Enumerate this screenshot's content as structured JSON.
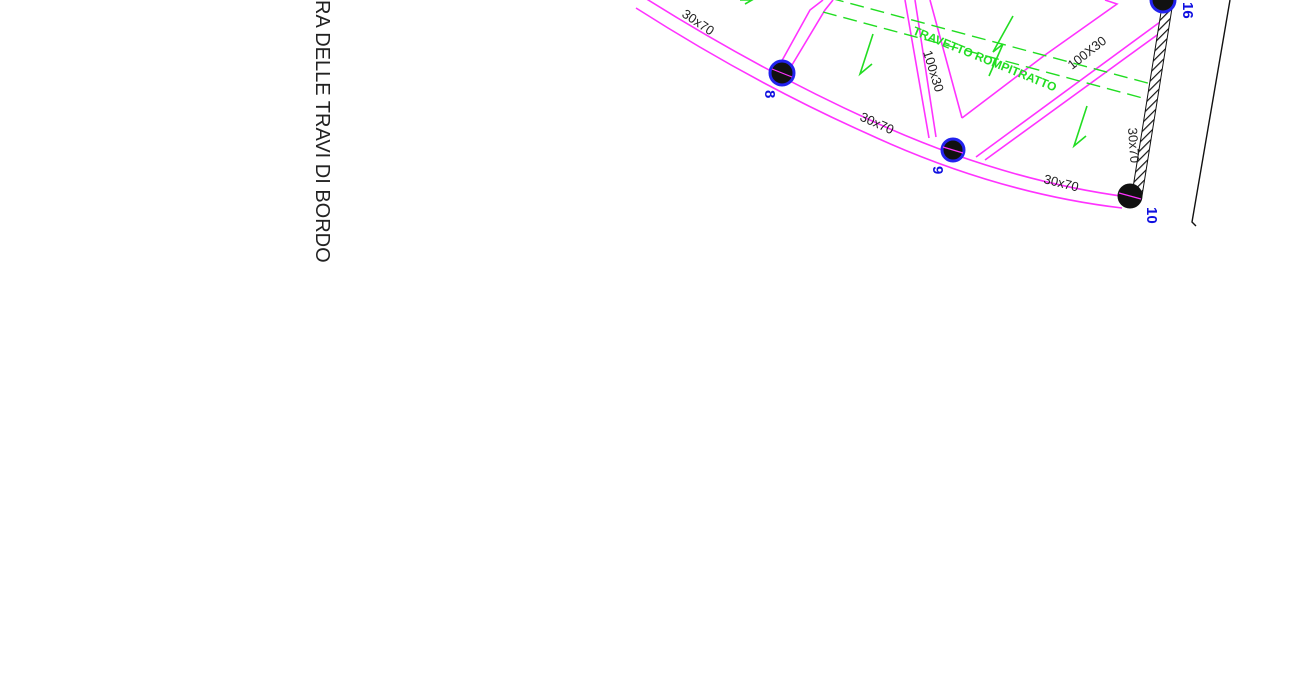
{
  "title": "RA DELLE TRAVI DI BORDO",
  "green_label": "TRAVETTO ROMPITRATTO",
  "beam_labels": {
    "b1": "30x70",
    "b2": "30x70",
    "b3": "30x70",
    "b4": "30x70",
    "b5": "100x30",
    "b6": "100X30"
  },
  "nodes": {
    "n8": "8",
    "n9": "9",
    "n10": "10",
    "n16": "16"
  },
  "colors": {
    "beam": "#ff33ff",
    "joist": "#22dd22",
    "node_label": "#1010e0",
    "column_fill": "#111111",
    "column_ring": "#2222ee"
  }
}
